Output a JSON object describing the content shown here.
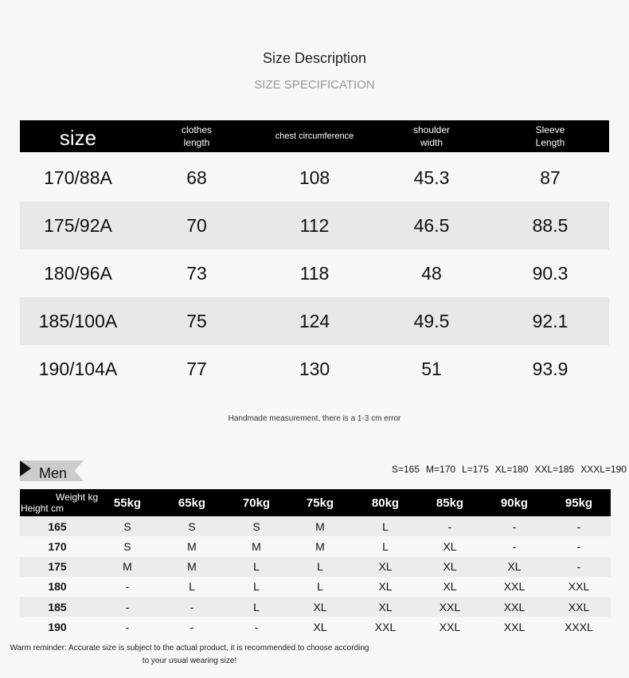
{
  "header": {
    "title": "Size Description",
    "subtitle": "SIZE SPECIFICATION"
  },
  "size_table": {
    "columns": [
      "size",
      "clothes length",
      "chest circumference",
      "shoulder width",
      "Sleeve Length"
    ],
    "rows": [
      [
        "170/88A",
        "68",
        "108",
        "45.3",
        "87"
      ],
      [
        "175/92A",
        "70",
        "112",
        "46.5",
        "88.5"
      ],
      [
        "180/96A",
        "73",
        "118",
        "48",
        "90.3"
      ],
      [
        "185/100A",
        "75",
        "124",
        "49.5",
        "92.1"
      ],
      [
        "190/104A",
        "77",
        "130",
        "51",
        "93.9"
      ]
    ]
  },
  "note": "Handmade measurement, there is a 1-3 cm error",
  "men_section": {
    "label": "Men",
    "legend": [
      "S=165",
      "M=170",
      "L=175",
      "XL=180",
      "XXL=185",
      "XXXL=190"
    ],
    "weight_label": "Weight kg",
    "height_label": "Height cm",
    "weights": [
      "55kg",
      "65kg",
      "70kg",
      "75kg",
      "80kg",
      "85kg",
      "90kg",
      "95kg"
    ],
    "rows": [
      {
        "height": "165",
        "sizes": [
          "S",
          "S",
          "S",
          "M",
          "L",
          "-",
          "-",
          "-"
        ]
      },
      {
        "height": "170",
        "sizes": [
          "S",
          "M",
          "M",
          "M",
          "L",
          "XL",
          "-",
          "-"
        ]
      },
      {
        "height": "175",
        "sizes": [
          "M",
          "M",
          "L",
          "L",
          "XL",
          "XL",
          "XL",
          "-"
        ]
      },
      {
        "height": "180",
        "sizes": [
          "-",
          "L",
          "L",
          "L",
          "XL",
          "XL",
          "XXL",
          "XXL"
        ]
      },
      {
        "height": "185",
        "sizes": [
          "-",
          "-",
          "L",
          "XL",
          "XL",
          "XXL",
          "XXL",
          "XXL"
        ]
      },
      {
        "height": "190",
        "sizes": [
          "-",
          "-",
          "-",
          "XL",
          "XXL",
          "XXL",
          "XXL",
          "XXXL"
        ]
      }
    ]
  },
  "reminder": "Warm reminder: Accurate size is subject to the actual product, it is recommended to choose according to your usual wearing size!"
}
